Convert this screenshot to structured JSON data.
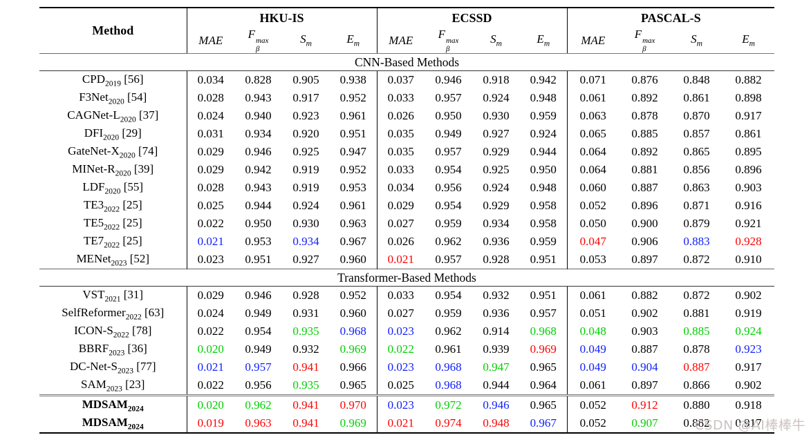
{
  "table": {
    "method_header": "Method",
    "datasets": [
      "HKU-IS",
      "ECSSD",
      "PASCAL-S"
    ],
    "metrics": [
      {
        "base": "MAE",
        "sup": "",
        "sub": ""
      },
      {
        "base": "F",
        "sup": "max",
        "sub": "β"
      },
      {
        "base": "S",
        "sup": "",
        "sub": "m"
      },
      {
        "base": "E",
        "sup": "",
        "sub": "m"
      }
    ],
    "sections": [
      {
        "title": "CNN-Based Methods",
        "rows": [
          {
            "name": "CPD",
            "year": "2019",
            "ref": "[56]",
            "values": [
              "0.034",
              "0.828",
              "0.905",
              "0.938",
              "0.037",
              "0.946",
              "0.918",
              "0.942",
              "0.071",
              "0.876",
              "0.848",
              "0.882"
            ]
          },
          {
            "name": "F3Net",
            "year": "2020",
            "ref": "[54]",
            "values": [
              "0.028",
              "0.943",
              "0.917",
              "0.952",
              "0.033",
              "0.957",
              "0.924",
              "0.948",
              "0.061",
              "0.892",
              "0.861",
              "0.898"
            ]
          },
          {
            "name": "CAGNet-L",
            "year": "2020",
            "ref": "[37]",
            "values": [
              "0.024",
              "0.940",
              "0.923",
              "0.961",
              "0.026",
              "0.950",
              "0.930",
              "0.959",
              "0.063",
              "0.878",
              "0.870",
              "0.917"
            ]
          },
          {
            "name": "DFI",
            "year": "2020",
            "ref": "[29]",
            "values": [
              "0.031",
              "0.934",
              "0.920",
              "0.951",
              "0.035",
              "0.949",
              "0.927",
              "0.924",
              "0.065",
              "0.885",
              "0.857",
              "0.861"
            ]
          },
          {
            "name": "GateNet-X",
            "year": "2020",
            "ref": "[74]",
            "values": [
              "0.029",
              "0.946",
              "0.925",
              "0.947",
              "0.035",
              "0.957",
              "0.929",
              "0.944",
              "0.064",
              "0.892",
              "0.865",
              "0.895"
            ]
          },
          {
            "name": "MINet-R",
            "year": "2020",
            "ref": "[39]",
            "values": [
              "0.029",
              "0.942",
              "0.919",
              "0.952",
              "0.033",
              "0.954",
              "0.925",
              "0.950",
              "0.064",
              "0.881",
              "0.856",
              "0.896"
            ]
          },
          {
            "name": "LDF",
            "year": "2020",
            "ref": "[55]",
            "values": [
              "0.028",
              "0.943",
              "0.919",
              "0.953",
              "0.034",
              "0.956",
              "0.924",
              "0.948",
              "0.060",
              "0.887",
              "0.863",
              "0.903"
            ]
          },
          {
            "name": "TE3",
            "year": "2022",
            "ref": "[25]",
            "values": [
              "0.025",
              "0.944",
              "0.924",
              "0.961",
              "0.029",
              "0.954",
              "0.929",
              "0.958",
              "0.052",
              "0.896",
              "0.871",
              "0.916"
            ]
          },
          {
            "name": "TE5",
            "year": "2022",
            "ref": "[25]",
            "values": [
              "0.022",
              "0.950",
              "0.930",
              "0.963",
              "0.027",
              "0.959",
              "0.934",
              "0.958",
              "0.050",
              "0.900",
              "0.879",
              "0.921"
            ]
          },
          {
            "name": "TE7",
            "year": "2022",
            "ref": "[25]",
            "values": [
              "0.021",
              "0.953",
              "0.934",
              "0.967",
              "0.026",
              "0.962",
              "0.936",
              "0.959",
              "0.047",
              "0.906",
              "0.883",
              "0.928"
            ],
            "colors": [
              "blue",
              "",
              "blue",
              "",
              "",
              "",
              "",
              "",
              "red",
              "",
              "blue",
              "red"
            ]
          },
          {
            "name": "MENet",
            "year": "2023",
            "ref": "[52]",
            "values": [
              "0.023",
              "0.951",
              "0.927",
              "0.960",
              "0.021",
              "0.957",
              "0.928",
              "0.951",
              "0.053",
              "0.897",
              "0.872",
              "0.910"
            ],
            "colors": [
              "",
              "",
              "",
              "",
              "red",
              "",
              "",
              "",
              "",
              "",
              "",
              ""
            ]
          }
        ]
      },
      {
        "title": "Transformer-Based Methods",
        "rows": [
          {
            "name": "VST",
            "year": "2021",
            "ref": "[31]",
            "values": [
              "0.029",
              "0.946",
              "0.928",
              "0.952",
              "0.033",
              "0.954",
              "0.932",
              "0.951",
              "0.061",
              "0.882",
              "0.872",
              "0.902"
            ]
          },
          {
            "name": "SelfReformer",
            "year": "2022",
            "ref": "[63]",
            "values": [
              "0.024",
              "0.949",
              "0.931",
              "0.960",
              "0.027",
              "0.959",
              "0.936",
              "0.957",
              "0.051",
              "0.902",
              "0.881",
              "0.919"
            ]
          },
          {
            "name": "ICON-S",
            "year": "2022",
            "ref": "[78]",
            "values": [
              "0.022",
              "0.954",
              "0.935",
              "0.968",
              "0.023",
              "0.962",
              "0.914",
              "0.968",
              "0.048",
              "0.903",
              "0.885",
              "0.924"
            ],
            "colors": [
              "",
              "",
              "green",
              "blue",
              "blue",
              "",
              "",
              "green",
              "green",
              "",
              "green",
              "green"
            ]
          },
          {
            "name": "BBRF",
            "year": "2023",
            "ref": "[36]",
            "values": [
              "0.020",
              "0.949",
              "0.932",
              "0.969",
              "0.022",
              "0.961",
              "0.939",
              "0.969",
              "0.049",
              "0.887",
              "0.878",
              "0.923"
            ],
            "colors": [
              "green",
              "",
              "",
              "green",
              "green",
              "",
              "",
              "red",
              "blue",
              "",
              "",
              "blue"
            ]
          },
          {
            "name": "DC-Net-S",
            "year": "2023",
            "ref": "[77]",
            "values": [
              "0.021",
              "0.957",
              "0.941",
              "0.966",
              "0.023",
              "0.968",
              "0.947",
              "0.965",
              "0.049",
              "0.904",
              "0.887",
              "0.917"
            ],
            "colors": [
              "blue",
              "blue",
              "red",
              "",
              "blue",
              "blue",
              "green",
              "",
              "blue",
              "blue",
              "red",
              ""
            ]
          },
          {
            "name": "SAM",
            "year": "2023",
            "ref": "[23]",
            "values": [
              "0.022",
              "0.956",
              "0.935",
              "0.965",
              "0.025",
              "0.968",
              "0.944",
              "0.964",
              "0.061",
              "0.897",
              "0.866",
              "0.902"
            ],
            "colors": [
              "",
              "",
              "green",
              "",
              "",
              "blue",
              "",
              "",
              "",
              "",
              "",
              ""
            ]
          }
        ]
      }
    ],
    "footer_rows": [
      {
        "name": "MDSAM",
        "year": "2024",
        "ref": "",
        "bold": true,
        "values": [
          "0.020",
          "0.962",
          "0.941",
          "0.970",
          "0.023",
          "0.972",
          "0.946",
          "0.965",
          "0.052",
          "0.912",
          "0.880",
          "0.918"
        ],
        "colors": [
          "green",
          "green",
          "red",
          "red",
          "blue",
          "green",
          "blue",
          "",
          "",
          "red",
          "",
          ""
        ]
      },
      {
        "name": "MDSAM",
        "year": "2024",
        "ref": "",
        "bold": true,
        "values": [
          "0.019",
          "0.963",
          "0.941",
          "0.969",
          "0.021",
          "0.974",
          "0.948",
          "0.967",
          "0.052",
          "0.907",
          "0.882",
          "0.917"
        ],
        "colors": [
          "red",
          "red",
          "red",
          "green",
          "red",
          "red",
          "red",
          "blue",
          "",
          "green",
          "",
          ""
        ]
      }
    ]
  },
  "value_colors": {
    "red": "#fe0000",
    "green": "#00cf00",
    "blue": "#1020fb"
  },
  "watermark": "CSDN @AI棒棒牛"
}
